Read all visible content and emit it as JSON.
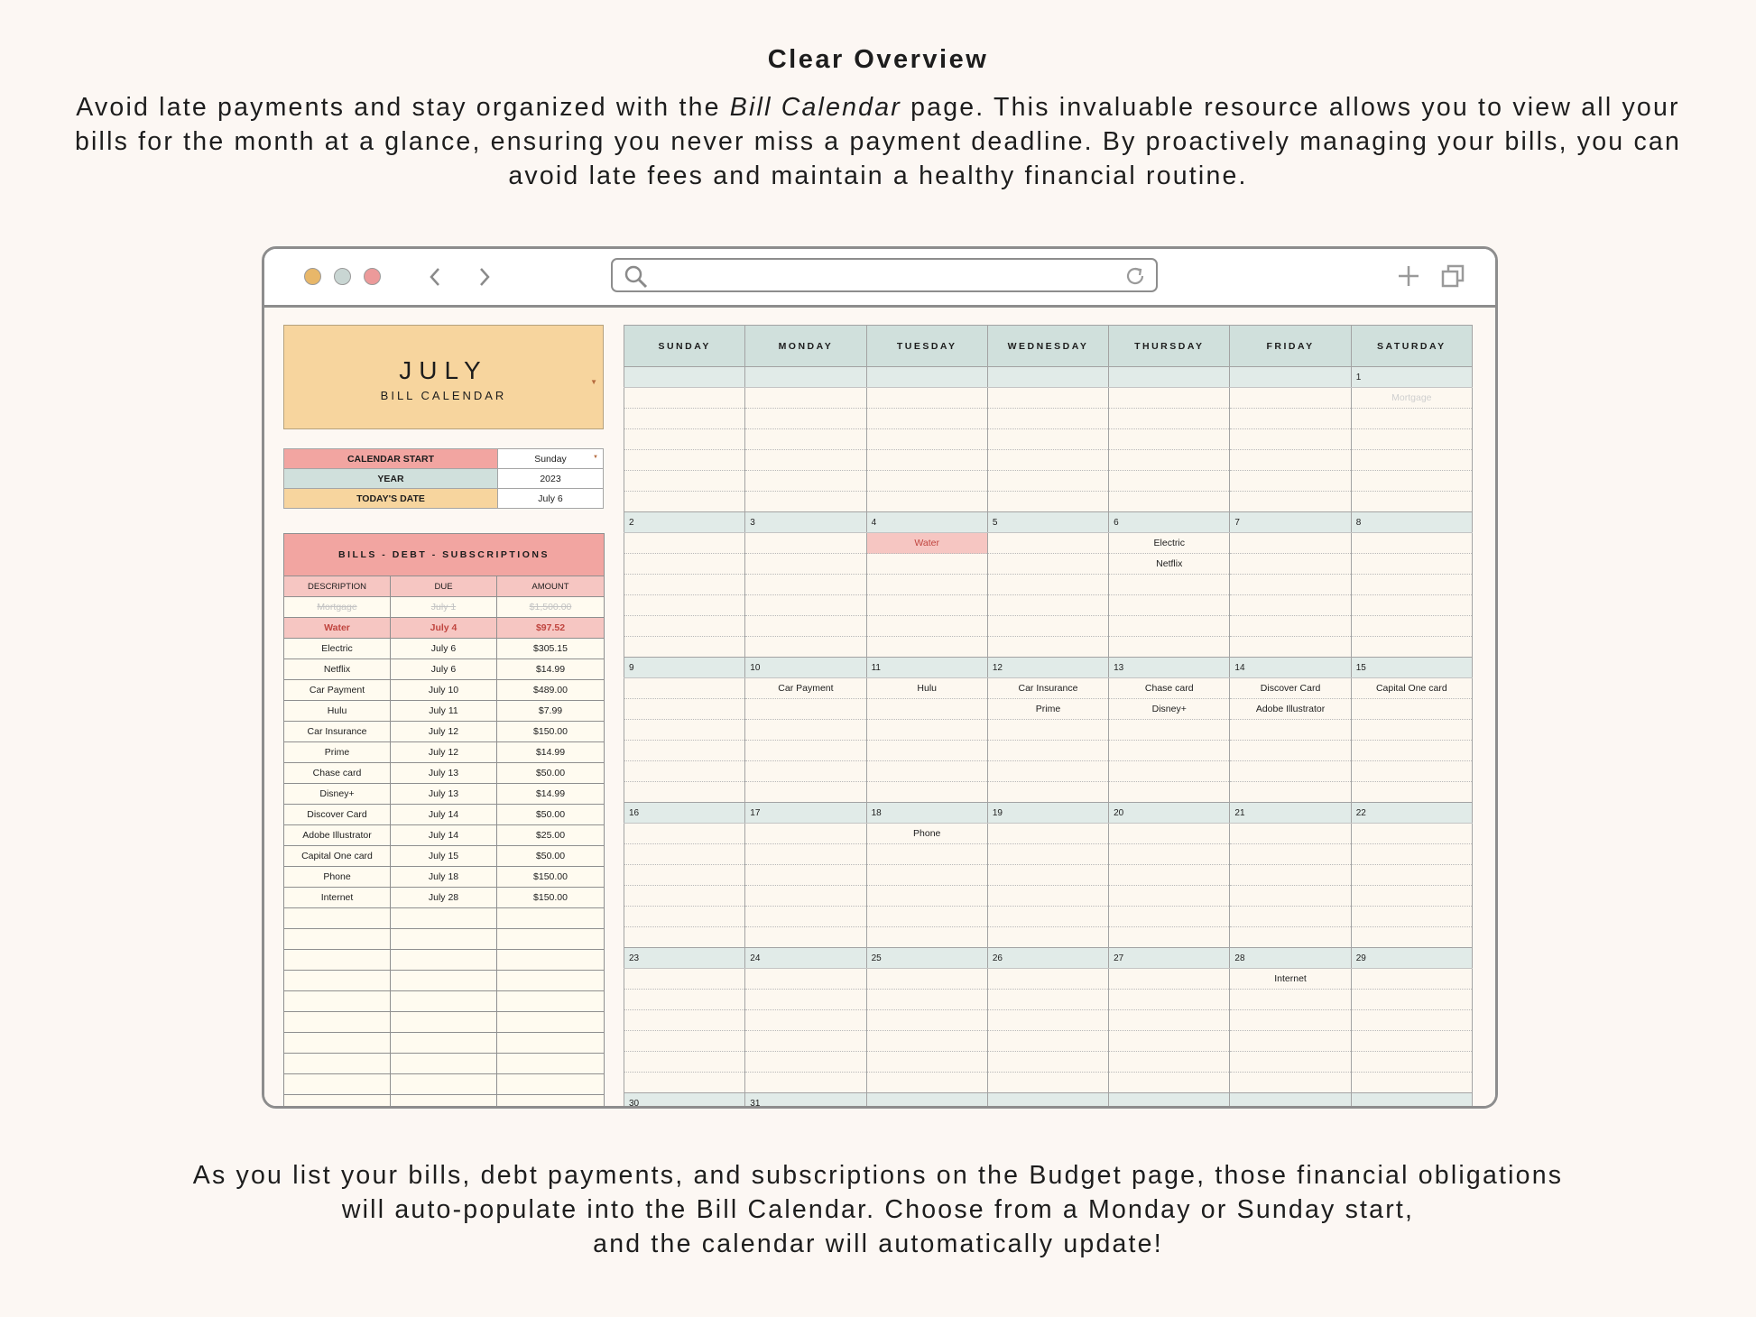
{
  "heading": "Clear Overview",
  "intro": {
    "before": "Avoid late payments and stay organized with the ",
    "em": "Bill Calendar",
    "after": " page. This invaluable resource allows you to view all your bills for the month at a glance, ensuring you never miss a payment deadline. By proactively managing your bills, you can avoid late fees and maintain a healthy financial routine."
  },
  "outro": {
    "line1": "As you list your bills, debt payments, and subscriptions on the Budget page, those financial obligations",
    "line2": "will auto-populate into the Bill Calendar. Choose from a Monday or Sunday start,",
    "line3": "and the calendar will automatically update!"
  },
  "colors": {
    "background": "#fcf7f3",
    "dot_yellow": "#e8b769",
    "dot_gray": "#c9d6d3",
    "dot_pink": "#ec9a9a",
    "title_block": "#f7d59e",
    "bills_header": "#f2a5a1",
    "calendar_header": "#d0e0dc",
    "alert_text": "#c0453f"
  },
  "browser": {
    "dots": [
      "yellow",
      "gray",
      "pink"
    ],
    "back_icon": "chevron-left-icon",
    "forward_icon": "chevron-right-icon",
    "search_icon": "search-icon",
    "reload_icon": "reload-icon",
    "new_tab_icon": "plus-icon",
    "tabs_icon": "tabs-icon"
  },
  "sheet": {
    "month": "JULY",
    "subtitle": "BILL CALENDAR",
    "settings": [
      {
        "label": "CALENDAR START",
        "value": "Sunday",
        "color": "#f2a5a1",
        "dropdown": true
      },
      {
        "label": "YEAR",
        "value": "2023",
        "color": "#d0e0dc",
        "dropdown": false
      },
      {
        "label": "TODAY'S DATE",
        "value": "July 6",
        "color": "#f7d59e",
        "dropdown": false
      }
    ],
    "bills_title": "BILLS - DEBT - SUBSCRIPTIONS",
    "bills_columns": [
      "DESCRIPTION",
      "DUE",
      "AMOUNT"
    ],
    "bills": [
      {
        "description": "Mortgage",
        "due": "July 1",
        "amount": "$1,500.00",
        "status": "paid"
      },
      {
        "description": "Water",
        "due": "July 4",
        "amount": "$97.52",
        "status": "overdue"
      },
      {
        "description": "Electric",
        "due": "July 6",
        "amount": "$305.15",
        "status": ""
      },
      {
        "description": "Netflix",
        "due": "July 6",
        "amount": "$14.99",
        "status": ""
      },
      {
        "description": "Car Payment",
        "due": "July 10",
        "amount": "$489.00",
        "status": ""
      },
      {
        "description": "Hulu",
        "due": "July 11",
        "amount": "$7.99",
        "status": ""
      },
      {
        "description": "Car Insurance",
        "due": "July 12",
        "amount": "$150.00",
        "status": ""
      },
      {
        "description": "Prime",
        "due": "July 12",
        "amount": "$14.99",
        "status": ""
      },
      {
        "description": "Chase card",
        "due": "July 13",
        "amount": "$50.00",
        "status": ""
      },
      {
        "description": "Disney+",
        "due": "July 13",
        "amount": "$14.99",
        "status": ""
      },
      {
        "description": "Discover Card",
        "due": "July 14",
        "amount": "$50.00",
        "status": ""
      },
      {
        "description": "Adobe Illustrator",
        "due": "July 14",
        "amount": "$25.00",
        "status": ""
      },
      {
        "description": "Capital One card",
        "due": "July 15",
        "amount": "$50.00",
        "status": ""
      },
      {
        "description": "Phone",
        "due": "July 18",
        "amount": "$150.00",
        "status": ""
      },
      {
        "description": "Internet",
        "due": "July 28",
        "amount": "$150.00",
        "status": ""
      }
    ],
    "calendar": {
      "days": [
        "SUNDAY",
        "MONDAY",
        "TUESDAY",
        "WEDNESDAY",
        "THURSDAY",
        "FRIDAY",
        "SATURDAY"
      ],
      "weeks": [
        {
          "dates": [
            "",
            "",
            "",
            "",
            "",
            "",
            "1"
          ],
          "items": [
            {
              "day": 6,
              "row": 0,
              "text": "Mortgage",
              "style": "ghost"
            }
          ]
        },
        {
          "dates": [
            "2",
            "3",
            "4",
            "5",
            "6",
            "7",
            "8"
          ],
          "items": [
            {
              "day": 2,
              "row": 0,
              "text": "Water",
              "style": "alert"
            },
            {
              "day": 4,
              "row": 0,
              "text": "Electric",
              "style": ""
            },
            {
              "day": 4,
              "row": 1,
              "text": "Netflix",
              "style": ""
            }
          ]
        },
        {
          "dates": [
            "9",
            "10",
            "11",
            "12",
            "13",
            "14",
            "15"
          ],
          "items": [
            {
              "day": 1,
              "row": 0,
              "text": "Car Payment",
              "style": ""
            },
            {
              "day": 2,
              "row": 0,
              "text": "Hulu",
              "style": ""
            },
            {
              "day": 3,
              "row": 0,
              "text": "Car Insurance",
              "style": ""
            },
            {
              "day": 3,
              "row": 1,
              "text": "Prime",
              "style": ""
            },
            {
              "day": 4,
              "row": 0,
              "text": "Chase card",
              "style": ""
            },
            {
              "day": 4,
              "row": 1,
              "text": "Disney+",
              "style": ""
            },
            {
              "day": 5,
              "row": 0,
              "text": "Discover Card",
              "style": ""
            },
            {
              "day": 5,
              "row": 1,
              "text": "Adobe Illustrator",
              "style": ""
            },
            {
              "day": 6,
              "row": 0,
              "text": "Capital One card",
              "style": ""
            }
          ]
        },
        {
          "dates": [
            "16",
            "17",
            "18",
            "19",
            "20",
            "21",
            "22"
          ],
          "items": [
            {
              "day": 2,
              "row": 0,
              "text": "Phone",
              "style": ""
            }
          ]
        },
        {
          "dates": [
            "23",
            "24",
            "25",
            "26",
            "27",
            "28",
            "29"
          ],
          "items": [
            {
              "day": 5,
              "row": 0,
              "text": "Internet",
              "style": ""
            }
          ]
        },
        {
          "dates": [
            "30",
            "31",
            "",
            "",
            "",
            "",
            ""
          ],
          "items": []
        }
      ]
    }
  }
}
